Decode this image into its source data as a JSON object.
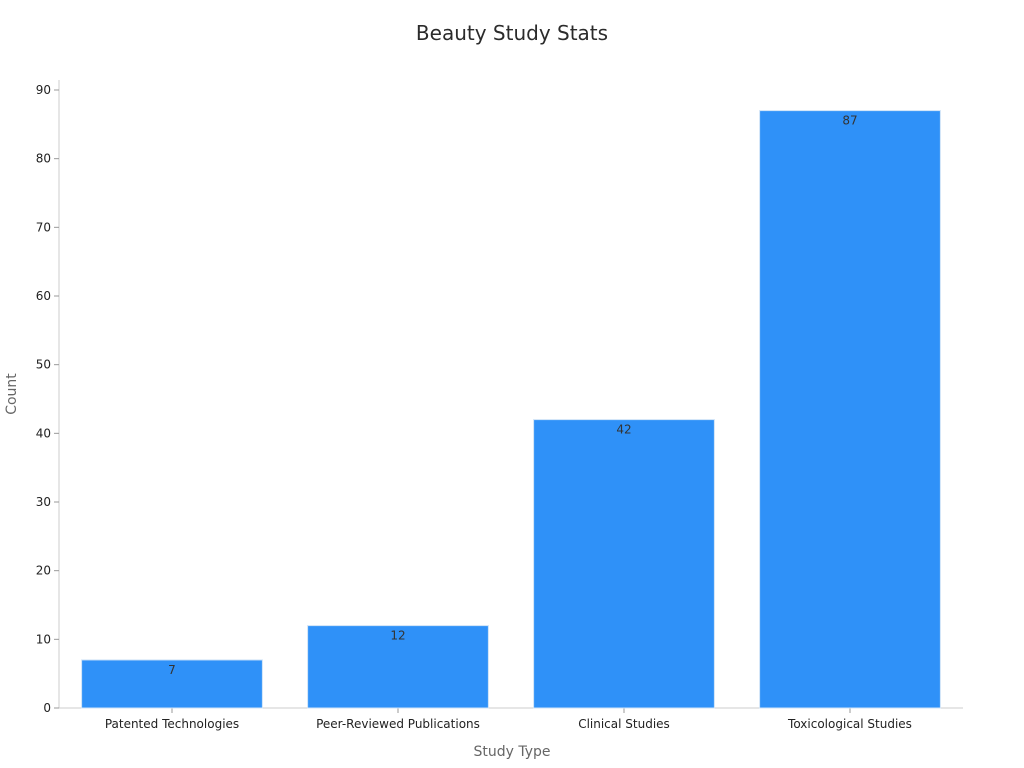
{
  "chart_data": {
    "type": "bar",
    "title": "Beauty Study Stats",
    "xlabel": "Study Type",
    "ylabel": "Count",
    "categories": [
      "Patented Technologies",
      "Peer-Reviewed Publications",
      "Clinical Studies",
      "Toxicological Studies"
    ],
    "values": [
      7,
      12,
      42,
      87
    ],
    "ylim": [
      0,
      90
    ],
    "yticks": [
      0,
      10,
      20,
      30,
      40,
      50,
      60,
      70,
      80,
      90
    ],
    "grid": false,
    "legend": "none",
    "bar_color": "#2f91f8"
  }
}
